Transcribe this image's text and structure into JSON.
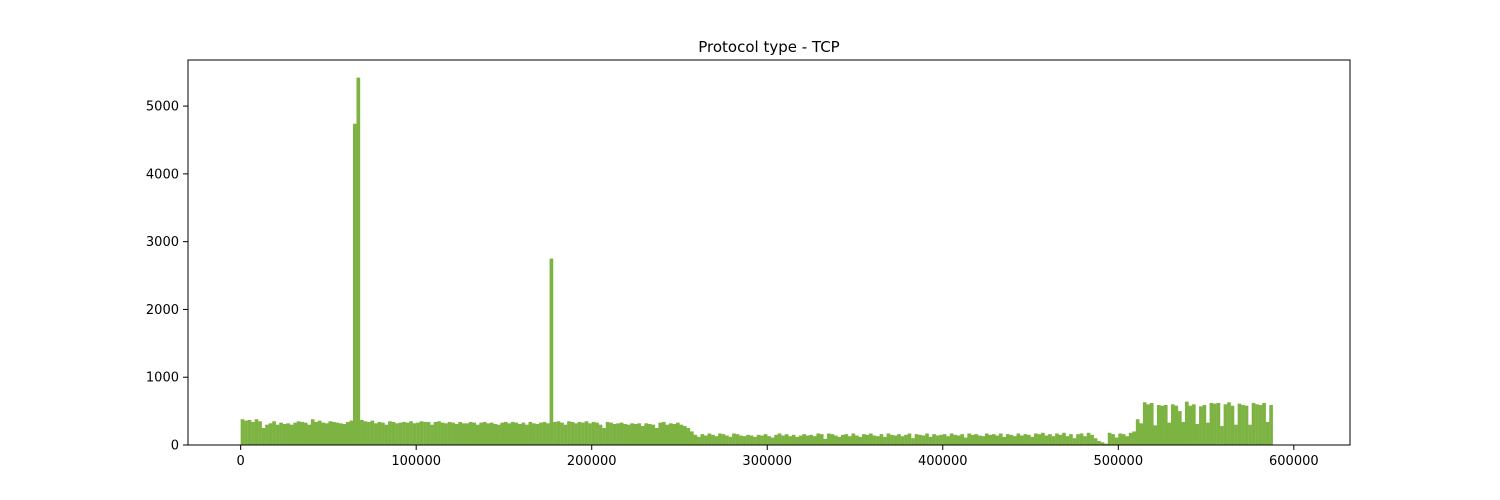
{
  "chart_data": {
    "type": "bar",
    "title": "Protocol type - TCP",
    "xlabel": "",
    "ylabel": "",
    "xlim": [
      -30000,
      632000
    ],
    "ylim": [
      0,
      5680
    ],
    "bar_color": "#7cb342",
    "x_ticks": [
      0,
      100000,
      200000,
      300000,
      400000,
      500000,
      600000
    ],
    "y_ticks": [
      0,
      1000,
      2000,
      3000,
      4000,
      5000
    ],
    "bin_start": 0,
    "bin_width": 2000,
    "values": [
      380,
      360,
      370,
      340,
      380,
      350,
      250,
      300,
      320,
      350,
      300,
      330,
      310,
      320,
      300,
      330,
      350,
      340,
      330,
      300,
      380,
      340,
      360,
      330,
      320,
      350,
      340,
      330,
      320,
      310,
      340,
      360,
      4740,
      5420,
      370,
      350,
      340,
      360,
      320,
      340,
      330,
      300,
      350,
      340,
      320,
      330,
      340,
      330,
      350,
      320,
      330,
      350,
      340,
      340,
      300,
      340,
      350,
      330,
      320,
      340,
      330,
      310,
      340,
      320,
      320,
      340,
      330,
      300,
      330,
      340,
      320,
      330,
      310,
      300,
      330,
      340,
      320,
      340,
      330,
      310,
      330,
      300,
      340,
      320,
      310,
      330,
      340,
      320,
      2750,
      340,
      350,
      330,
      300,
      350,
      340,
      320,
      340,
      330,
      350,
      320,
      340,
      330,
      300,
      250,
      340,
      330,
      310,
      320,
      330,
      310,
      300,
      320,
      310,
      320,
      280,
      320,
      310,
      300,
      250,
      330,
      340,
      300,
      320,
      310,
      330,
      300,
      280,
      250,
      200,
      150,
      120,
      160,
      140,
      170,
      150,
      130,
      170,
      160,
      140,
      120,
      170,
      160,
      140,
      130,
      150,
      140,
      120,
      150,
      140,
      160,
      130,
      110,
      150,
      170,
      140,
      160,
      130,
      150,
      120,
      140,
      160,
      140,
      150,
      130,
      170,
      160,
      90,
      170,
      160,
      140,
      120,
      150,
      160,
      130,
      170,
      140,
      120,
      160,
      150,
      170,
      140,
      130,
      160,
      120,
      170,
      150,
      140,
      160,
      130,
      150,
      170,
      100,
      160,
      150,
      140,
      170,
      120,
      160,
      140,
      150,
      160,
      130,
      170,
      150,
      140,
      160,
      110,
      170,
      150,
      160,
      140,
      130,
      170,
      150,
      160,
      140,
      170,
      120,
      160,
      150,
      130,
      170,
      140,
      160,
      150,
      120,
      170,
      160,
      180,
      140,
      160,
      130,
      170,
      150,
      180,
      130,
      160,
      100,
      160,
      170,
      130,
      180,
      150,
      100,
      60,
      40,
      20,
      180,
      160,
      110,
      170,
      160,
      130,
      180,
      200,
      380,
      320,
      630,
      600,
      620,
      290,
      590,
      580,
      590,
      330,
      600,
      580,
      500,
      340,
      640,
      580,
      600,
      310,
      570,
      590,
      330,
      620,
      610,
      620,
      280,
      600,
      630,
      580,
      300,
      610,
      590,
      580,
      300,
      620,
      600,
      590,
      620,
      340,
      590
    ]
  }
}
